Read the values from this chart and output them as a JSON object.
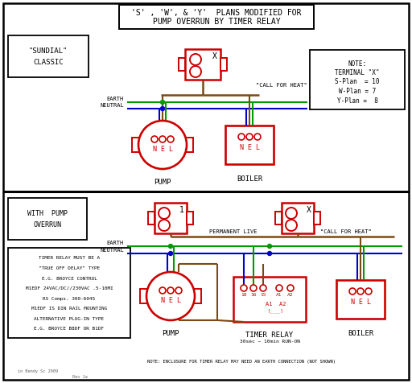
{
  "bg_color": "#ffffff",
  "red": "#cc0000",
  "brown": "#7B4A12",
  "green": "#009900",
  "blue": "#0000cc",
  "black": "#000000",
  "gray": "#666666",
  "title_line1": "'S' , 'W', & 'Y'  PLANS MODIFIED FOR",
  "title_line2": "PUMP OVERRUN BY TIMER RELAY",
  "sundial_label1": "\"SUNDIAL\"",
  "sundial_label2": "CLASSIC",
  "with_pump1": "WITH  PUMP",
  "with_pump2": "OVERRUN",
  "note_lines": [
    "NOTE:",
    "TERMINAL \"X\"",
    "S-Plan  = 10",
    "W-Plan = 7",
    "Y-Plan =  8"
  ],
  "info_lines": [
    "TIMER RELAY MUST BE A",
    "\"TRUE OFF DELAY\" TYPE",
    "E.G. BROYCE CONTROL",
    "M1EDF 24VAC/DC//230VAC .5-10MI",
    "RS Comps. 300-6045",
    "M1EDF IS DIN RAIL MOUNTING",
    "ALTERNATIVE PLUG-IN TYPE",
    "E.G. BROYCE B8DF OR B1DF"
  ],
  "bottom_note": "NOTE: ENCLOSURE FOR TIMER RELAY MAY NEED AN EARTH CONNECTION (NOT SHOWN)",
  "credit": "in Bendy Sc 2009",
  "rev": "Rev 1a"
}
